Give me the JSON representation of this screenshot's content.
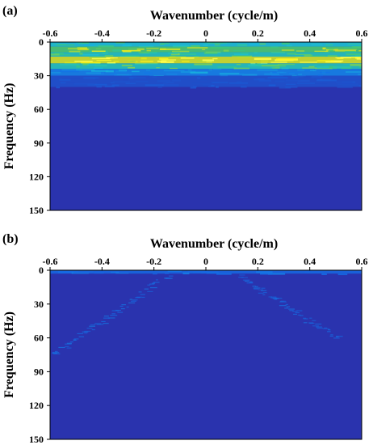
{
  "chart_data": [
    {
      "type": "heatmap",
      "panel_label": "(a)",
      "xlabel": "Wavenumber (cycle/m)",
      "ylabel": "Frequency (Hz)",
      "xlim": [
        -0.6,
        0.6
      ],
      "ylim": [
        0,
        150
      ],
      "y_inverted": true,
      "x_ticks": [
        "-0.6",
        "-0.4",
        "-0.2",
        "0",
        "0.2",
        "0.4",
        "0.6"
      ],
      "y_ticks": [
        "0",
        "30",
        "60",
        "90",
        "120",
        "150"
      ],
      "x_axis_position": "top",
      "colormap": "jet",
      "background_color": "#2a33ae",
      "features": [
        {
          "kind": "band",
          "f_min": 0,
          "f_max": 4,
          "intensity": 0.55
        },
        {
          "kind": "band",
          "f_min": 4,
          "f_max": 9,
          "intensity": 0.75
        },
        {
          "kind": "band",
          "f_min": 9,
          "f_max": 13,
          "intensity": 0.6
        },
        {
          "kind": "band",
          "f_min": 13,
          "f_max": 19,
          "intensity": 0.95
        },
        {
          "kind": "band",
          "f_min": 19,
          "f_max": 24,
          "intensity": 0.6
        },
        {
          "kind": "band",
          "f_min": 24,
          "f_max": 30,
          "intensity": 0.35
        },
        {
          "kind": "band",
          "f_min": 30,
          "f_max": 40,
          "intensity": 0.15
        }
      ]
    },
    {
      "type": "heatmap",
      "panel_label": "(b)",
      "xlabel": "Wavenumber (cycle/m)",
      "ylabel": "Frequency (Hz)",
      "xlim": [
        -0.6,
        0.6
      ],
      "ylim": [
        0,
        150
      ],
      "y_inverted": true,
      "x_ticks": [
        "-0.6",
        "-0.4",
        "-0.2",
        "0",
        "0.2",
        "0.4",
        "0.6"
      ],
      "y_ticks": [
        "0",
        "30",
        "60",
        "90",
        "120",
        "150"
      ],
      "x_axis_position": "top",
      "colormap": "jet",
      "background_color": "#2a33ae",
      "features": [
        {
          "kind": "band",
          "f_min": 0,
          "f_max": 3,
          "intensity": 0.25
        },
        {
          "kind": "line",
          "k0": -0.15,
          "f0": 5,
          "k1": -0.6,
          "f1": 75,
          "intensity": 0.2
        },
        {
          "kind": "line",
          "k0": 0.12,
          "f0": 5,
          "k1": 0.5,
          "f1": 60,
          "intensity": 0.18
        }
      ]
    }
  ]
}
